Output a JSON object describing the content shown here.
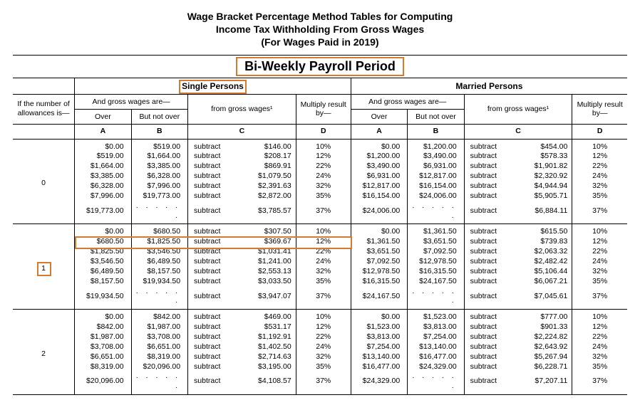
{
  "title": {
    "line1": "Wage Bracket Percentage Method Tables for Computing",
    "line2": "Income Tax Withholding From Gross Wages",
    "line3": "(For Wages Paid in 2019)"
  },
  "period": "Bi-Weekly Payroll Period",
  "allow_label": "If the number of allowances is—",
  "group_labels": {
    "single": "Single Persons",
    "married": "Married Persons"
  },
  "subheads": {
    "gross": "And gross wages are—",
    "over": "Over",
    "notover": "But not over",
    "from": "from gross wages¹",
    "multiply": "Multiply result by—"
  },
  "col_letters": [
    "A",
    "B",
    "C",
    "D"
  ],
  "highlights": {
    "period_box": true,
    "single_box": true,
    "allow_box_value": "1",
    "row_box": {
      "allowance_index": 1,
      "row_index": 1
    }
  },
  "style": {
    "orange": "#d77a2e",
    "dots": ". . . . . ."
  },
  "blocks": [
    {
      "allowance": "0",
      "single": [
        {
          "over": "$0.00",
          "notover": "$519.00",
          "op": "subtract",
          "from": "$146.00",
          "pct": "10%"
        },
        {
          "over": "$519.00",
          "notover": "$1,664.00",
          "op": "subtract",
          "from": "$208.17",
          "pct": "12%"
        },
        {
          "over": "$1,664.00",
          "notover": "$3,385.00",
          "op": "subtract",
          "from": "$869.91",
          "pct": "22%"
        },
        {
          "over": "$3,385.00",
          "notover": "$6,328.00",
          "op": "subtract",
          "from": "$1,079.50",
          "pct": "24%"
        },
        {
          "over": "$6,328.00",
          "notover": "$7,996.00",
          "op": "subtract",
          "from": "$2,391.63",
          "pct": "32%"
        },
        {
          "over": "$7,996.00",
          "notover": "$19,773.00",
          "op": "subtract",
          "from": "$2,872.00",
          "pct": "35%"
        },
        {
          "over": "$19,773.00",
          "notover": "",
          "op": "subtract",
          "from": "$3,785.57",
          "pct": "37%"
        }
      ],
      "married": [
        {
          "over": "$0.00",
          "notover": "$1,200.00",
          "op": "subtract",
          "from": "$454.00",
          "pct": "10%"
        },
        {
          "over": "$1,200.00",
          "notover": "$3,490.00",
          "op": "subtract",
          "from": "$578.33",
          "pct": "12%"
        },
        {
          "over": "$3,490.00",
          "notover": "$6,931.00",
          "op": "subtract",
          "from": "$1,901.82",
          "pct": "22%"
        },
        {
          "over": "$6,931.00",
          "notover": "$12,817.00",
          "op": "subtract",
          "from": "$2,320.92",
          "pct": "24%"
        },
        {
          "over": "$12,817.00",
          "notover": "$16,154.00",
          "op": "subtract",
          "from": "$4,944.94",
          "pct": "32%"
        },
        {
          "over": "$16,154.00",
          "notover": "$24,006.00",
          "op": "subtract",
          "from": "$5,905.71",
          "pct": "35%"
        },
        {
          "over": "$24,006.00",
          "notover": "",
          "op": "subtract",
          "from": "$6,884.11",
          "pct": "37%"
        }
      ]
    },
    {
      "allowance": "1",
      "single": [
        {
          "over": "$0.00",
          "notover": "$680.50",
          "op": "subtract",
          "from": "$307.50",
          "pct": "10%"
        },
        {
          "over": "$680.50",
          "notover": "$1,825.50",
          "op": "subtract",
          "from": "$369.67",
          "pct": "12%"
        },
        {
          "over": "$1,825.50",
          "notover": "$3,546.50",
          "op": "subtract",
          "from": "$1,031.41",
          "pct": "22%"
        },
        {
          "over": "$3,546.50",
          "notover": "$6,489.50",
          "op": "subtract",
          "from": "$1,241.00",
          "pct": "24%"
        },
        {
          "over": "$6,489.50",
          "notover": "$8,157.50",
          "op": "subtract",
          "from": "$2,553.13",
          "pct": "32%"
        },
        {
          "over": "$8,157.50",
          "notover": "$19,934.50",
          "op": "subtract",
          "from": "$3,033.50",
          "pct": "35%"
        },
        {
          "over": "$19,934.50",
          "notover": "",
          "op": "subtract",
          "from": "$3,947.07",
          "pct": "37%"
        }
      ],
      "married": [
        {
          "over": "$0.00",
          "notover": "$1,361.50",
          "op": "subtract",
          "from": "$615.50",
          "pct": "10%"
        },
        {
          "over": "$1,361.50",
          "notover": "$3,651.50",
          "op": "subtract",
          "from": "$739.83",
          "pct": "12%"
        },
        {
          "over": "$3,651.50",
          "notover": "$7,092.50",
          "op": "subtract",
          "from": "$2,063.32",
          "pct": "22%"
        },
        {
          "over": "$7,092.50",
          "notover": "$12,978.50",
          "op": "subtract",
          "from": "$2,482.42",
          "pct": "24%"
        },
        {
          "over": "$12,978.50",
          "notover": "$16,315.50",
          "op": "subtract",
          "from": "$5,106.44",
          "pct": "32%"
        },
        {
          "over": "$16,315.50",
          "notover": "$24,167.50",
          "op": "subtract",
          "from": "$6,067.21",
          "pct": "35%"
        },
        {
          "over": "$24,167.50",
          "notover": "",
          "op": "subtract",
          "from": "$7,045.61",
          "pct": "37%"
        }
      ]
    },
    {
      "allowance": "2",
      "single": [
        {
          "over": "$0.00",
          "notover": "$842.00",
          "op": "subtract",
          "from": "$469.00",
          "pct": "10%"
        },
        {
          "over": "$842.00",
          "notover": "$1,987.00",
          "op": "subtract",
          "from": "$531.17",
          "pct": "12%"
        },
        {
          "over": "$1,987.00",
          "notover": "$3,708.00",
          "op": "subtract",
          "from": "$1,192.91",
          "pct": "22%"
        },
        {
          "over": "$3,708.00",
          "notover": "$6,651.00",
          "op": "subtract",
          "from": "$1,402.50",
          "pct": "24%"
        },
        {
          "over": "$6,651.00",
          "notover": "$8,319.00",
          "op": "subtract",
          "from": "$2,714.63",
          "pct": "32%"
        },
        {
          "over": "$8,319.00",
          "notover": "$20,096.00",
          "op": "subtract",
          "from": "$3,195.00",
          "pct": "35%"
        },
        {
          "over": "$20,096.00",
          "notover": "",
          "op": "subtract",
          "from": "$4,108.57",
          "pct": "37%"
        }
      ],
      "married": [
        {
          "over": "$0.00",
          "notover": "$1,523.00",
          "op": "subtract",
          "from": "$777.00",
          "pct": "10%"
        },
        {
          "over": "$1,523.00",
          "notover": "$3,813.00",
          "op": "subtract",
          "from": "$901.33",
          "pct": "12%"
        },
        {
          "over": "$3,813.00",
          "notover": "$7,254.00",
          "op": "subtract",
          "from": "$2,224.82",
          "pct": "22%"
        },
        {
          "over": "$7,254.00",
          "notover": "$13,140.00",
          "op": "subtract",
          "from": "$2,643.92",
          "pct": "24%"
        },
        {
          "over": "$13,140.00",
          "notover": "$16,477.00",
          "op": "subtract",
          "from": "$5,267.94",
          "pct": "32%"
        },
        {
          "over": "$16,477.00",
          "notover": "$24,329.00",
          "op": "subtract",
          "from": "$6,228.71",
          "pct": "35%"
        },
        {
          "over": "$24,329.00",
          "notover": "",
          "op": "subtract",
          "from": "$7,207.11",
          "pct": "37%"
        }
      ]
    }
  ]
}
